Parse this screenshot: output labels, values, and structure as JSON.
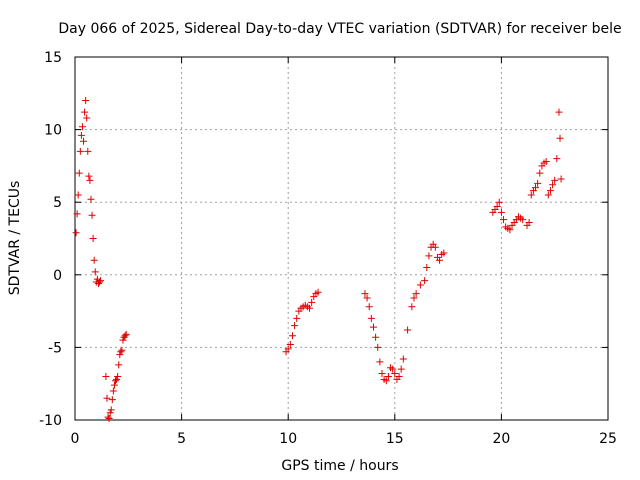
{
  "chart_data": {
    "type": "scatter",
    "title": "Day 066 of 2025, Sidereal Day-to-day VTEC variation (SDTVAR) for receiver bele",
    "xlabel": "GPS time / hours",
    "ylabel": "SDTVAR / TECUs",
    "xlim": [
      0,
      25
    ],
    "ylim": [
      -10,
      15
    ],
    "xticks": [
      0,
      5,
      10,
      15,
      20,
      25
    ],
    "yticks": [
      -10,
      -5,
      0,
      5,
      10,
      15
    ],
    "xtick_labels": [
      "0",
      "5",
      "10",
      "15",
      "20",
      "25"
    ],
    "ytick_labels": [
      "-10",
      "-5",
      "0",
      "5",
      "10",
      "15"
    ],
    "grid": true,
    "marker": "plus",
    "color": "#e00000",
    "series": [
      {
        "name": "SDTVAR",
        "x": [
          0.05,
          0.1,
          0.15,
          0.2,
          0.25,
          0.3,
          0.35,
          0.4,
          0.45,
          0.5,
          0.55,
          0.6,
          0.65,
          0.7,
          0.75,
          0.8,
          0.85,
          0.9,
          0.95,
          1.0,
          1.05,
          1.1,
          1.15,
          1.2,
          1.45,
          1.5,
          1.55,
          1.6,
          1.65,
          1.7,
          1.75,
          1.8,
          1.85,
          1.9,
          1.95,
          2.0,
          2.05,
          2.1,
          2.15,
          2.2,
          2.25,
          2.3,
          2.35,
          2.4,
          9.9,
          10.0,
          10.1,
          10.2,
          10.3,
          10.4,
          10.5,
          10.6,
          10.7,
          10.8,
          10.9,
          11.0,
          11.1,
          11.2,
          11.3,
          11.4,
          13.6,
          13.7,
          13.8,
          13.9,
          14.0,
          14.1,
          14.2,
          14.3,
          14.4,
          14.5,
          14.6,
          14.7,
          14.8,
          14.9,
          15.0,
          15.1,
          15.2,
          15.3,
          15.4,
          15.6,
          15.8,
          15.9,
          16.0,
          16.2,
          16.4,
          16.5,
          16.6,
          16.7,
          16.8,
          16.9,
          17.0,
          17.1,
          17.2,
          17.3,
          19.6,
          19.7,
          19.8,
          19.9,
          20.0,
          20.1,
          20.2,
          20.3,
          20.4,
          20.5,
          20.6,
          20.7,
          20.8,
          20.9,
          21.0,
          21.2,
          21.3,
          21.4,
          21.5,
          21.6,
          21.7,
          21.8,
          21.9,
          22.0,
          22.1,
          22.2,
          22.3,
          22.4,
          22.5,
          22.6,
          22.7,
          22.75,
          22.8
        ],
        "y": [
          2.9,
          4.2,
          5.5,
          7.0,
          8.5,
          9.6,
          10.2,
          9.2,
          11.2,
          12.0,
          10.8,
          8.5,
          6.8,
          6.5,
          5.2,
          4.1,
          2.5,
          1.0,
          0.2,
          -0.5,
          -0.3,
          -0.6,
          -0.5,
          -0.4,
          -7.0,
          -8.5,
          -9.8,
          -9.9,
          -9.5,
          -9.3,
          -8.6,
          -8.0,
          -7.6,
          -7.3,
          -7.2,
          -7.0,
          -6.2,
          -5.5,
          -5.3,
          -5.2,
          -4.5,
          -4.3,
          -4.2,
          -4.1,
          -5.3,
          -5.1,
          -4.8,
          -4.2,
          -3.5,
          -3.0,
          -2.5,
          -2.3,
          -2.2,
          -2.1,
          -2.2,
          -2.3,
          -1.9,
          -1.5,
          -1.3,
          -1.2,
          -1.3,
          -1.6,
          -2.2,
          -3.0,
          -3.6,
          -4.3,
          -5.0,
          -6.0,
          -6.8,
          -7.2,
          -7.3,
          -7.0,
          -6.4,
          -6.5,
          -6.8,
          -7.2,
          -7.0,
          -6.5,
          -5.8,
          -3.8,
          -2.2,
          -1.6,
          -1.3,
          -0.7,
          -0.4,
          0.5,
          1.3,
          1.9,
          2.1,
          1.9,
          1.2,
          1.0,
          1.4,
          1.5,
          4.3,
          4.5,
          4.7,
          5.0,
          4.3,
          3.8,
          3.3,
          3.2,
          3.1,
          3.4,
          3.6,
          3.8,
          4.0,
          3.9,
          3.8,
          3.4,
          3.6,
          5.5,
          5.8,
          6.0,
          6.3,
          7.0,
          7.5,
          7.7,
          7.8,
          5.5,
          5.8,
          6.2,
          6.5,
          8.0,
          11.2,
          9.4,
          6.6
        ]
      }
    ]
  }
}
